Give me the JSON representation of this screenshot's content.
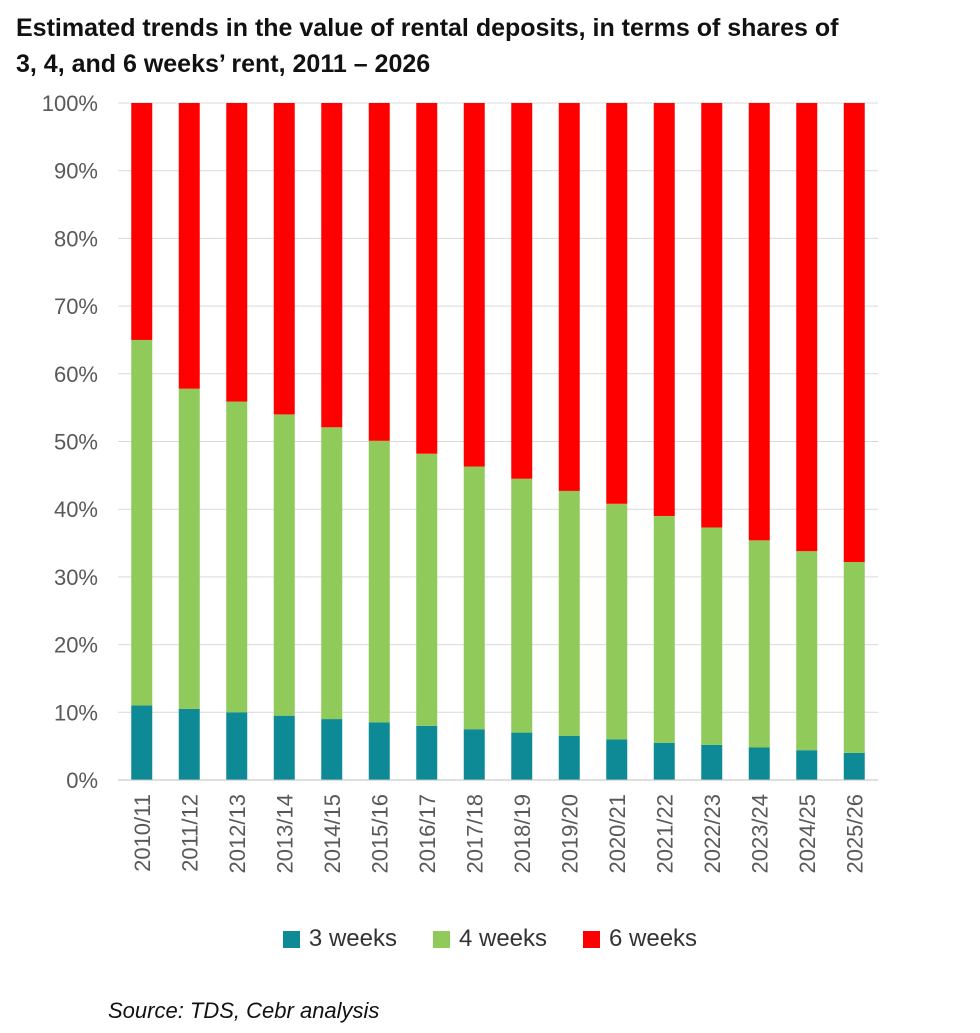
{
  "chart_data": {
    "type": "bar",
    "stacked": true,
    "title": "Estimated trends in the value of rental deposits, in terms of shares of\n3, 4, and 6 weeks’ rent, 2011 – 2026",
    "categories": [
      "2010/11",
      "2011/12",
      "2012/13",
      "2013/14",
      "2014/15",
      "2015/16",
      "2016/17",
      "2017/18",
      "2018/19",
      "2019/20",
      "2020/21",
      "2021/22",
      "2022/23",
      "2023/24",
      "2024/25",
      "2025/26"
    ],
    "series": [
      {
        "name": "3 weeks",
        "color": "#0e8a96",
        "values": [
          11.0,
          10.5,
          10.0,
          9.5,
          9.0,
          8.5,
          8.0,
          7.5,
          7.0,
          6.5,
          6.0,
          5.5,
          5.2,
          4.8,
          4.4,
          4.0
        ]
      },
      {
        "name": "4 weeks",
        "color": "#8fca5a",
        "values": [
          54.0,
          47.3,
          45.9,
          44.5,
          43.1,
          41.6,
          40.2,
          38.8,
          37.5,
          36.2,
          34.8,
          33.5,
          32.1,
          30.6,
          29.4,
          28.2
        ]
      },
      {
        "name": "6 weeks",
        "color": "#ff0000",
        "values": [
          35.0,
          42.2,
          44.1,
          46.0,
          47.9,
          49.9,
          51.8,
          53.7,
          55.5,
          57.3,
          59.2,
          61.0,
          62.7,
          64.6,
          66.2,
          67.8
        ]
      }
    ],
    "yticks": [
      "0%",
      "10%",
      "20%",
      "30%",
      "40%",
      "50%",
      "60%",
      "70%",
      "80%",
      "90%",
      "100%"
    ],
    "ylim": [
      0,
      100
    ],
    "grid": true,
    "legend_position": "bottom",
    "source": "Source: TDS, Cebr analysis"
  }
}
